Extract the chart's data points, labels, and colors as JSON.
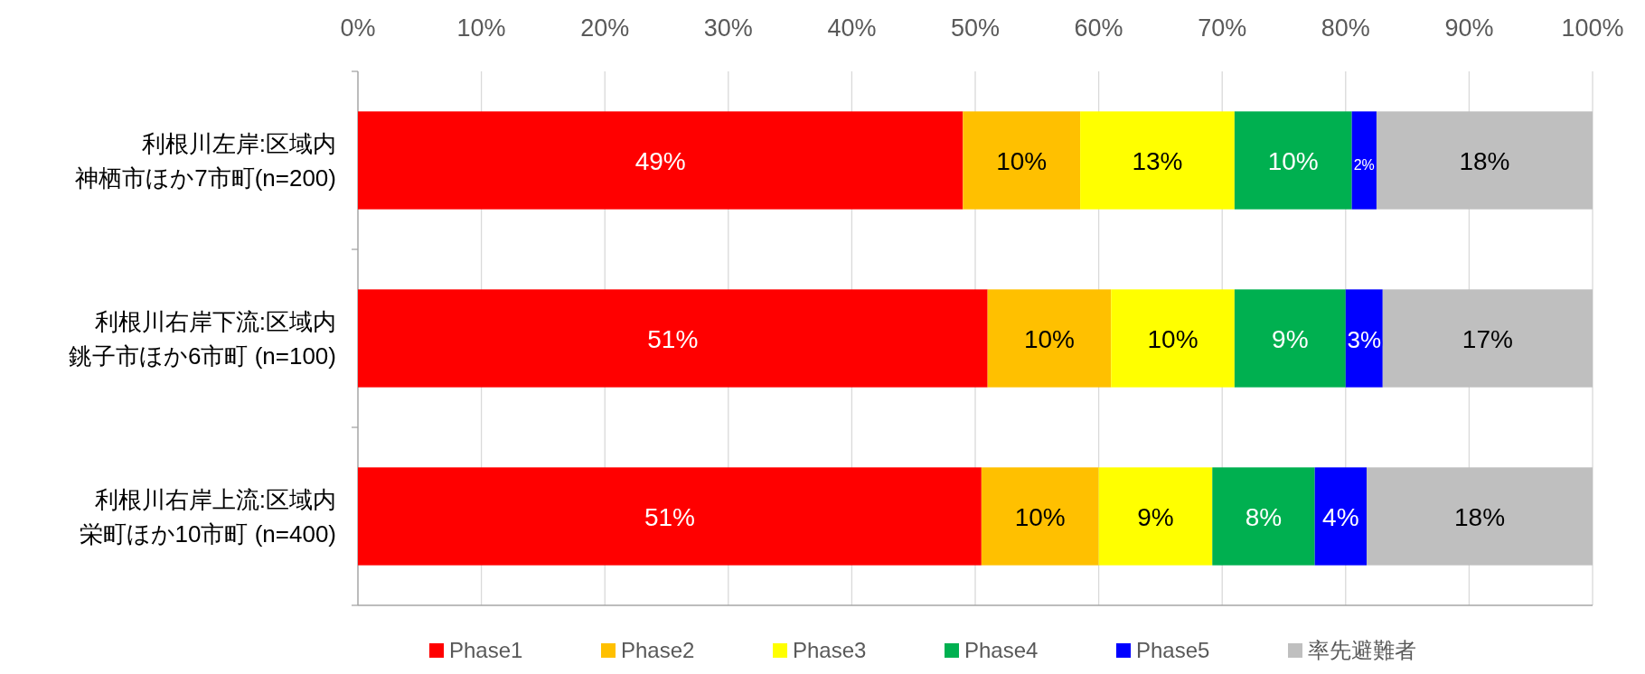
{
  "chart_data": {
    "type": "bar",
    "orientation": "horizontal",
    "stacked": true,
    "categories": [
      "利根川左岸:区域内神栖市ほか7市町(n=200)",
      "利根川右岸下流:区域内銚子市ほか6市町 (n=100)",
      "利根川右岸上流:区域内栄町ほか10市町 (n=400)"
    ],
    "series": [
      {
        "name": "Phase1",
        "color": "#ff0000",
        "values": [
          49.0,
          51.0,
          50.5
        ],
        "value_labels": [
          "49%",
          "51%",
          "51%"
        ]
      },
      {
        "name": "Phase2",
        "color": "#ffc000",
        "values": [
          9.5,
          10.0,
          9.5
        ],
        "value_labels": [
          "10%",
          "10%",
          "10%"
        ]
      },
      {
        "name": "Phase3",
        "color": "#ffff00",
        "values": [
          12.5,
          10.0,
          9.2
        ],
        "value_labels": [
          "13%",
          "10%",
          "9%"
        ]
      },
      {
        "name": "Phase4",
        "color": "#00b050",
        "values": [
          9.5,
          9.0,
          8.3
        ],
        "value_labels": [
          "10%",
          "9%",
          "8%"
        ]
      },
      {
        "name": "Phase5",
        "color": "#0000ff",
        "values": [
          2.0,
          3.0,
          4.2
        ],
        "value_labels": [
          "2%",
          "3%",
          "4%"
        ]
      },
      {
        "name": "率先避難者",
        "color": "#bfbfbf",
        "values": [
          17.5,
          17.0,
          18.3
        ],
        "value_labels": [
          "18%",
          "17%",
          "18%"
        ]
      }
    ],
    "xlim": [
      0,
      100
    ],
    "xticks": [
      {
        "value": 0,
        "label": "0%"
      },
      {
        "value": 10,
        "label": "10%"
      },
      {
        "value": 20,
        "label": "20%"
      },
      {
        "value": 30,
        "label": "30%"
      },
      {
        "value": 40,
        "label": "40%"
      },
      {
        "value": 50,
        "label": "50%"
      },
      {
        "value": 60,
        "label": "60%"
      },
      {
        "value": 70,
        "label": "70%"
      },
      {
        "value": 80,
        "label": "80%"
      },
      {
        "value": 90,
        "label": "90%"
      },
      {
        "value": 100,
        "label": "100%"
      }
    ],
    "grid": "x",
    "legend": "bottom"
  }
}
